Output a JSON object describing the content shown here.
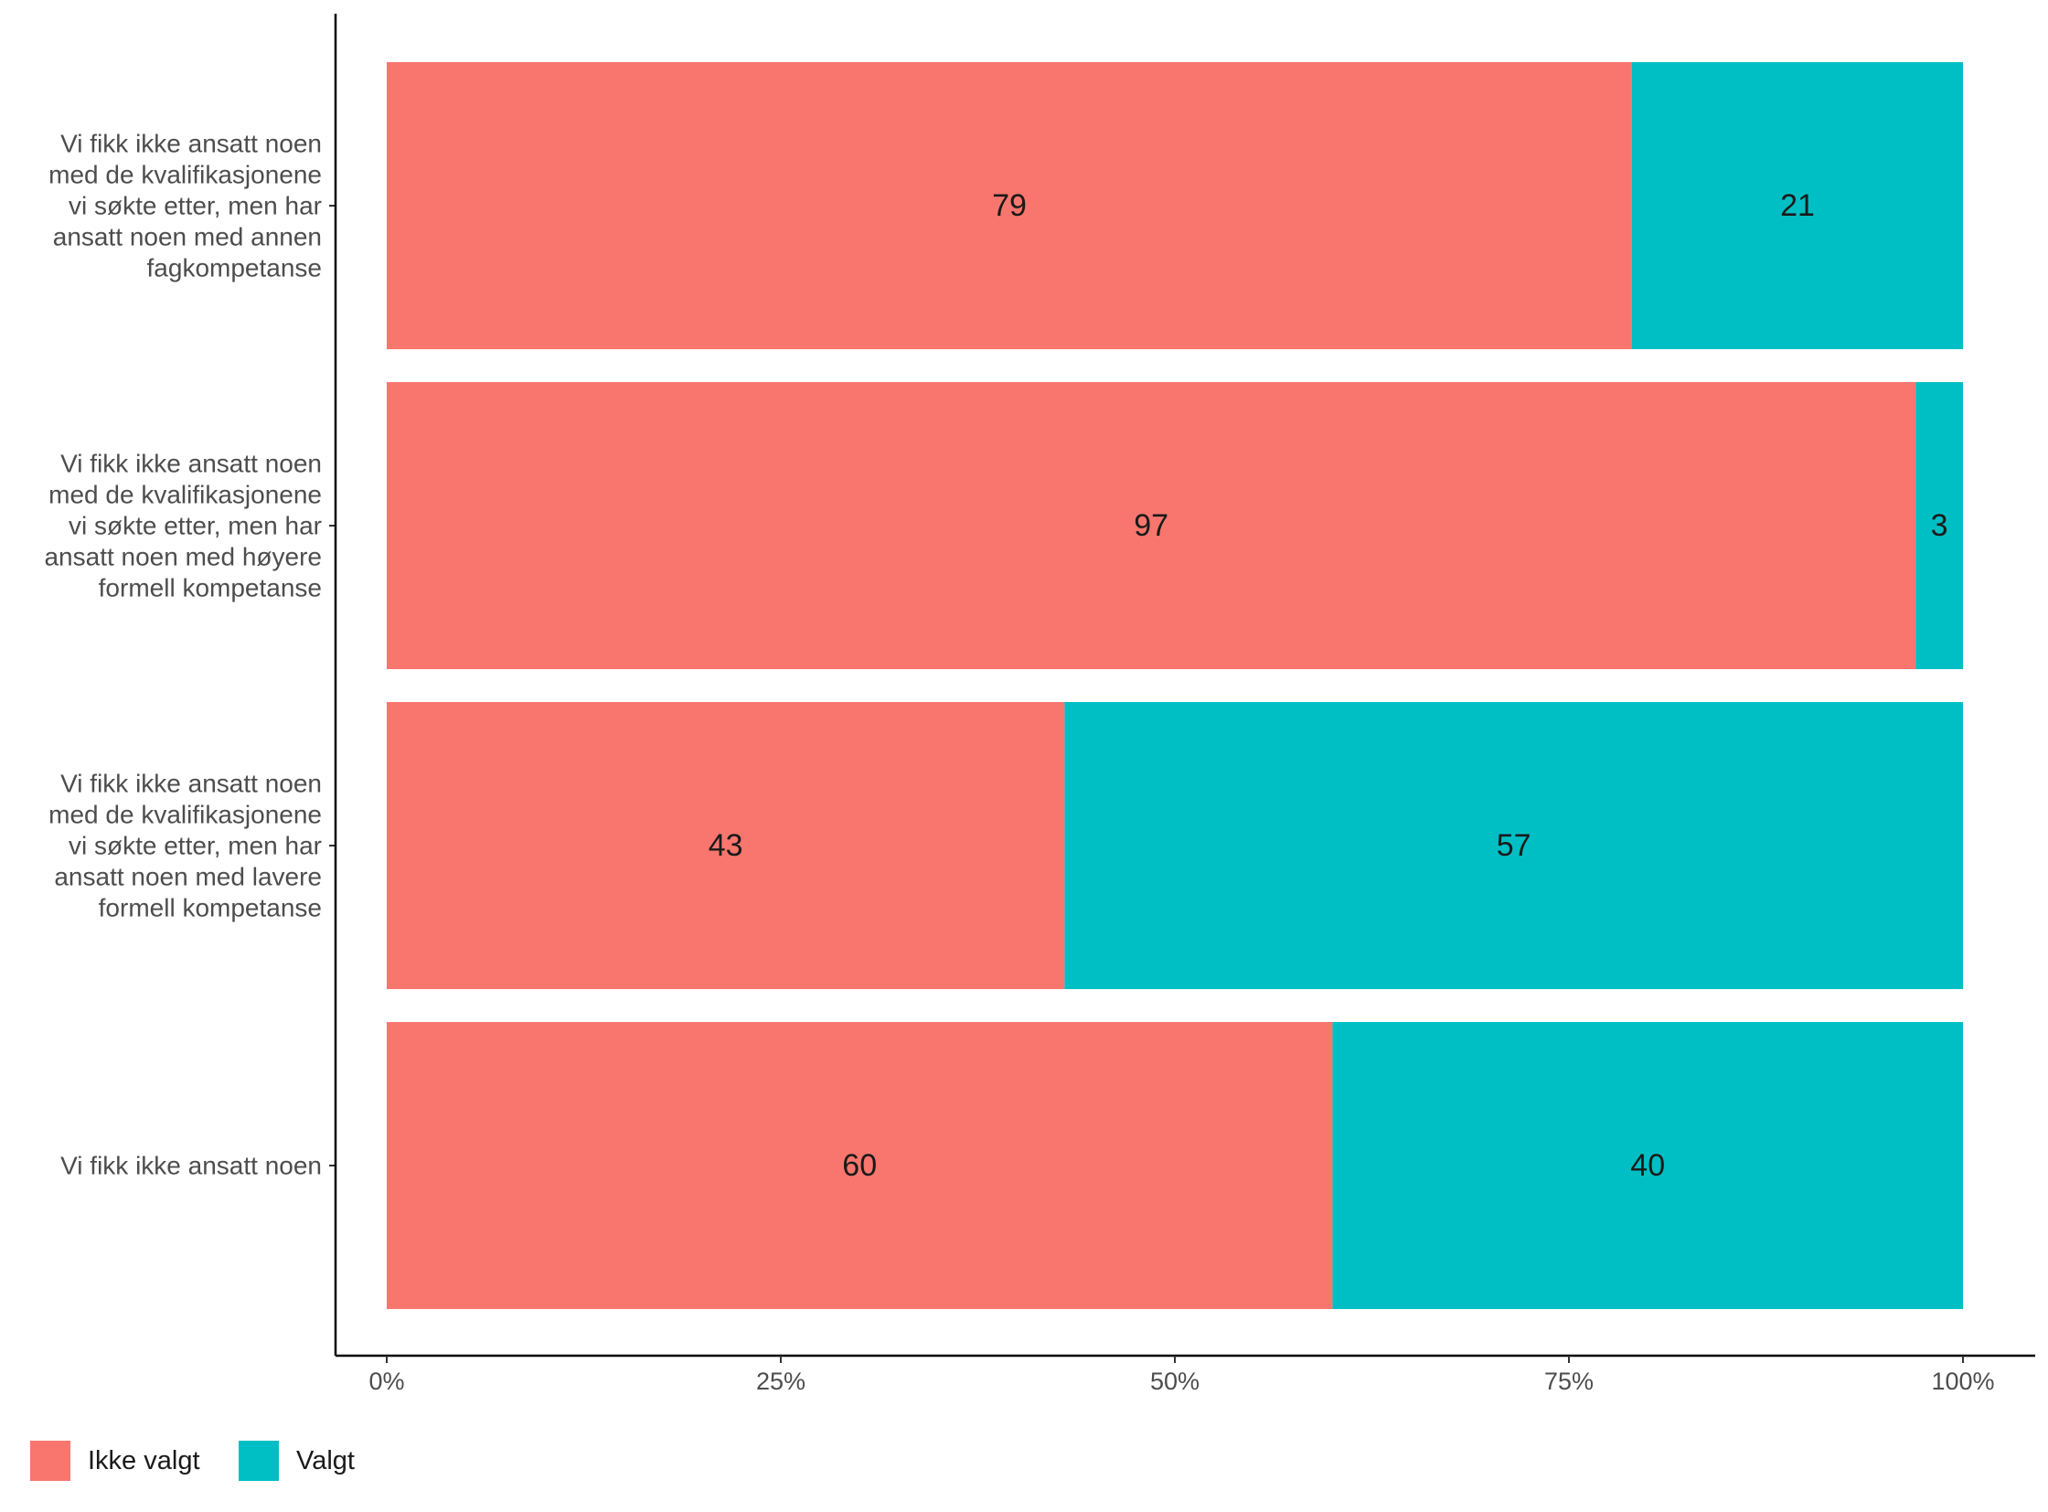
{
  "chart_data": {
    "type": "bar",
    "orientation": "horizontal",
    "stacked": true,
    "categories": [
      [
        "Vi fikk ikke ansatt noen",
        "med de kvalifikasjonene",
        "vi søkte etter, men har",
        "ansatt noen med annen",
        "fagkompetanse"
      ],
      [
        "Vi fikk ikke ansatt noen",
        "med de kvalifikasjonene",
        "vi søkte etter, men har",
        "ansatt noen med høyere",
        "formell kompetanse"
      ],
      [
        "Vi fikk ikke ansatt noen",
        "med de kvalifikasjonene",
        "vi søkte etter, men har",
        "ansatt noen med lavere",
        "formell kompetanse"
      ],
      [
        "Vi fikk ikke ansatt noen"
      ]
    ],
    "series": [
      {
        "name": "Ikke valgt",
        "color": "#F8766D",
        "values": [
          79,
          97,
          43,
          60
        ]
      },
      {
        "name": "Valgt",
        "color": "#00BFC4",
        "values": [
          21,
          3,
          57,
          40
        ]
      }
    ],
    "xticks": [
      "0%",
      "25%",
      "50%",
      "75%",
      "100%"
    ],
    "xlim": [
      0,
      100
    ],
    "legend_position": "bottom-left",
    "grid": false
  }
}
